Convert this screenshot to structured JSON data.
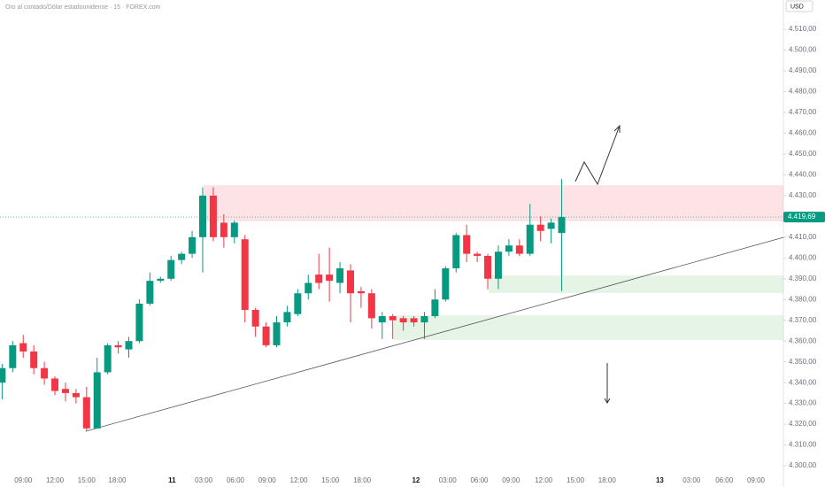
{
  "chart_data": {
    "type": "candlestick",
    "title": "Oro al contado/Dólar estadounidense · 15 · FOREX.com",
    "currency": "USD",
    "up_color": "#089981",
    "down_color": "#f23645",
    "xlim": [
      0,
      74.2
    ],
    "ylim": [
      4289.8,
      4524.1
    ],
    "xticks": [
      {
        "value": 2.2,
        "label": "09:00"
      },
      {
        "value": 5.2,
        "label": "12:00"
      },
      {
        "value": 8.2,
        "label": "15:00"
      },
      {
        "value": 11.1,
        "label": "18:00"
      },
      {
        "value": 16.3,
        "label": "11"
      },
      {
        "value": 19.3,
        "label": "03:00"
      },
      {
        "value": 22.3,
        "label": "06:00"
      },
      {
        "value": 25.3,
        "label": "09:00"
      },
      {
        "value": 28.3,
        "label": "12:00"
      },
      {
        "value": 31.3,
        "label": "15:00"
      },
      {
        "value": 34.3,
        "label": "18:00"
      },
      {
        "value": 39.4,
        "label": "12"
      },
      {
        "value": 42.4,
        "label": "03:00"
      },
      {
        "value": 45.4,
        "label": "06:00"
      },
      {
        "value": 48.4,
        "label": "09:00"
      },
      {
        "value": 51.5,
        "label": "12:00"
      },
      {
        "value": 54.5,
        "label": "15:00"
      },
      {
        "value": 57.5,
        "label": "18:00"
      },
      {
        "value": 62.5,
        "label": "13"
      },
      {
        "value": 65.5,
        "label": "03:00"
      },
      {
        "value": 68.6,
        "label": "06:00"
      },
      {
        "value": 71.6,
        "label": "09:00"
      }
    ],
    "yticks": [
      {
        "value": 4300,
        "label": "4.300,00"
      },
      {
        "value": 4310,
        "label": "4.310,00"
      },
      {
        "value": 4320,
        "label": "4.320,00"
      },
      {
        "value": 4330,
        "label": "4.330,00"
      },
      {
        "value": 4340,
        "label": "4.340,00"
      },
      {
        "value": 4350,
        "label": "4.350,00"
      },
      {
        "value": 4360,
        "label": "4.360,00"
      },
      {
        "value": 4370,
        "label": "4.370,00"
      },
      {
        "value": 4380,
        "label": "4.380,00"
      },
      {
        "value": 4390,
        "label": "4.390,00"
      },
      {
        "value": 4400,
        "label": "4.400,00"
      },
      {
        "value": 4410,
        "label": "4.410,00"
      },
      {
        "value": 4420,
        "label": "4.420,00"
      },
      {
        "value": 4430,
        "label": "4.430,00"
      },
      {
        "value": 4440,
        "label": "4.440,00"
      },
      {
        "value": 4450,
        "label": "4.450,00"
      },
      {
        "value": 4460,
        "label": "4.460,00"
      },
      {
        "value": 4470,
        "label": "4.470,00"
      },
      {
        "value": 4480,
        "label": "4.480,00"
      },
      {
        "value": 4490,
        "label": "4.490,00"
      },
      {
        "value": 4500,
        "label": "4.500,00"
      },
      {
        "value": 4510,
        "label": "4.510,00"
      }
    ],
    "candles": {
      "x": [
        0.2,
        1.2,
        2.2,
        3.2,
        4.2,
        5.2,
        6.2,
        7.2,
        8.2,
        9.2,
        10.2,
        11.2,
        12.2,
        13.2,
        14.2,
        15.2,
        16.2,
        17.2,
        18.2,
        19.2,
        20.2,
        21.2,
        22.2,
        23.2,
        24.2,
        25.2,
        26.2,
        27.2,
        28.2,
        29.2,
        30.2,
        31.2,
        32.2,
        33.2,
        34.2,
        35.2,
        36.2,
        37.2,
        38.2,
        39.2,
        40.2,
        41.2,
        42.2,
        43.2,
        44.2,
        45.2,
        46.2,
        47.2,
        48.2,
        49.2,
        50.2,
        51.2,
        52.2,
        53.2
      ],
      "open": [
        4340,
        4347,
        4359,
        4355,
        4347,
        4342,
        4337,
        4335,
        4333,
        4318,
        4345,
        4358,
        4356,
        4360,
        4378,
        4389,
        4390,
        4399,
        4402,
        4410,
        4430,
        4417,
        4410,
        4409,
        4375,
        4367,
        4358,
        4369,
        4373,
        4383,
        4392,
        4392,
        4388,
        4394,
        4384,
        4383,
        4369,
        4372,
        4371,
        4371,
        4369,
        4372,
        4380,
        4395,
        4411,
        4402,
        4401,
        4390,
        4403,
        4406,
        4402,
        4416,
        4414,
        4412
      ],
      "high": [
        4349,
        4360,
        4363,
        4358,
        4350,
        4343,
        4340,
        4337,
        4338,
        4352,
        4359,
        4360,
        4362,
        4380,
        4393,
        4391,
        4401,
        4403,
        4413,
        4434,
        4434,
        4421,
        4418,
        4411,
        4376,
        4369,
        4372,
        4377,
        4385,
        4392,
        4402,
        4405,
        4398,
        4397,
        4386,
        4385,
        4374,
        4373,
        4372,
        4372,
        4374,
        4385,
        4396,
        4412,
        4416,
        4403,
        4402,
        4406,
        4409,
        4409,
        4426,
        4420,
        4419,
        4438
      ],
      "low": [
        4332,
        4345,
        4352,
        4344,
        4339,
        4334,
        4331,
        4330,
        4317,
        4318,
        4344,
        4354,
        4352,
        4359,
        4377,
        4388,
        4389,
        4397,
        4400,
        4393,
        4408,
        4405,
        4407,
        4369,
        4362,
        4357,
        4357,
        4367,
        4372,
        4380,
        4385,
        4379,
        4383,
        4369,
        4376,
        4366,
        4361,
        4361,
        4365,
        4367,
        4361,
        4371,
        4379,
        4393,
        4398,
        4398,
        4385,
        4385,
        4401,
        4401,
        4401,
        4408,
        4407,
        4384
      ],
      "close": [
        4347,
        4358,
        4355,
        4347,
        4342,
        4336,
        4335,
        4333,
        4318,
        4345,
        4358,
        4357,
        4360,
        4378,
        4389,
        4390,
        4399,
        4402,
        4410,
        4430,
        4410,
        4410,
        4417,
        4375,
        4367,
        4358,
        4369,
        4374,
        4383,
        4388,
        4388,
        4389,
        4395,
        4383,
        4383,
        4371,
        4372,
        4370,
        4369,
        4369,
        4372,
        4380,
        4395,
        4411,
        4402,
        4401,
        4390,
        4403,
        4406,
        4402,
        4416,
        4413,
        4417,
        4419.69
      ]
    },
    "last_price": {
      "value": 4419.69,
      "label": "4.419,69"
    },
    "zones": [
      {
        "x": [
          19.3,
          74.2
        ],
        "y": [
          4435,
          4417.6
        ],
        "color": "rgba(242,54,69,0.14)"
      },
      {
        "x": [
          46.3,
          74.2
        ],
        "y": [
          4391.6,
          4383.1
        ],
        "color": "rgba(76,175,80,0.14)"
      },
      {
        "x": [
          37.3,
          74.2
        ],
        "y": [
          4372.4,
          4360.5
        ],
        "color": "rgba(76,175,80,0.14)"
      }
    ],
    "trendline": {
      "x": [
        8.1,
        74.2
      ],
      "y": [
        4316.6,
        4409.9
      ]
    }
  }
}
